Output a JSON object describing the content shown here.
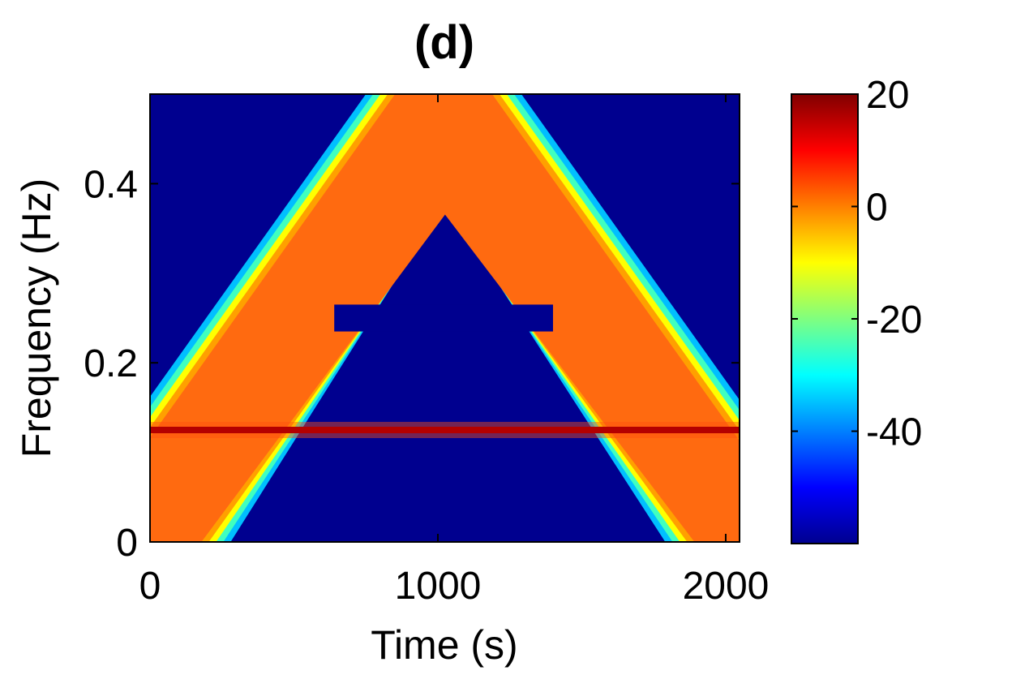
{
  "chart_data": {
    "type": "heatmap",
    "title": "(d)",
    "xlabel": "Time (s)",
    "ylabel": "Frequency (Hz)",
    "xlim": [
      0,
      2048
    ],
    "ylim": [
      0,
      0.5
    ],
    "xticks": [
      0,
      1000,
      2000
    ],
    "xtick_labels": [
      "0",
      "1000",
      "2000"
    ],
    "yticks": [
      0,
      0.2,
      0.4
    ],
    "ytick_labels": [
      "0",
      "0.2",
      "0.4"
    ],
    "colormap": "jet",
    "color_range": [
      -60,
      20
    ],
    "colorbar_ticks": [
      20,
      0,
      -20,
      -40
    ],
    "colorbar_tick_labels": [
      "20",
      "0",
      "-20",
      "-40"
    ],
    "grid": false,
    "features": [
      {
        "kind": "outer-chirp-band",
        "description": "Λ-shaped ridge of ~0 dB rising from 0 Hz at t≈0–260 s to 0.5 Hz at t≈780–1250 s, falling back to 0 Hz at t≈1790–2048 s"
      },
      {
        "kind": "horizontal-tone",
        "frequency": 0.125,
        "level": 20
      },
      {
        "kind": "masked-rectangle",
        "time_range": [
          640,
          1400
        ],
        "frequency_range": [
          0.235,
          0.265
        ],
        "level": -60
      }
    ]
  }
}
